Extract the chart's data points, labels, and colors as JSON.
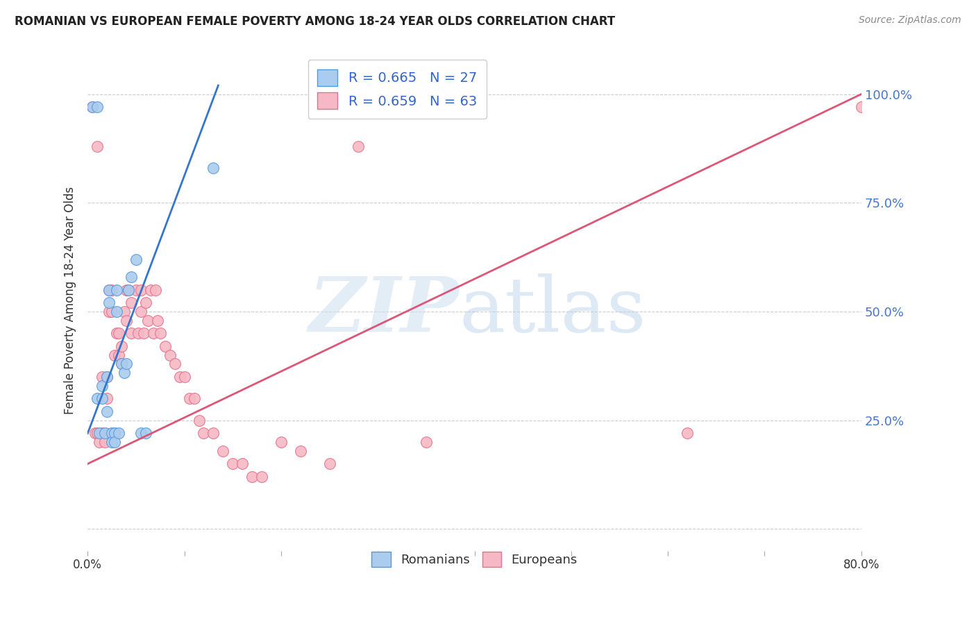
{
  "title": "ROMANIAN VS EUROPEAN FEMALE POVERTY AMONG 18-24 YEAR OLDS CORRELATION CHART",
  "source": "Source: ZipAtlas.com",
  "ylabel": "Female Poverty Among 18-24 Year Olds",
  "yticks": [
    0.0,
    0.25,
    0.5,
    0.75,
    1.0
  ],
  "ytick_labels_right": [
    "",
    "25.0%",
    "50.0%",
    "75.0%",
    "100.0%"
  ],
  "xlim": [
    0.0,
    0.8
  ],
  "ylim": [
    -0.05,
    1.1
  ],
  "legend_r_blue": "R = 0.665",
  "legend_n_blue": "N = 27",
  "legend_r_pink": "R = 0.659",
  "legend_n_pink": "N = 63",
  "blue_fill": "#aaccee",
  "pink_fill": "#f5b8c4",
  "blue_edge": "#5599dd",
  "pink_edge": "#e8708a",
  "blue_line": "#3377cc",
  "pink_line": "#dd5577",
  "romanians_x": [
    0.005,
    0.01,
    0.01,
    0.012,
    0.015,
    0.015,
    0.018,
    0.02,
    0.02,
    0.022,
    0.022,
    0.025,
    0.025,
    0.028,
    0.028,
    0.03,
    0.03,
    0.032,
    0.035,
    0.038,
    0.04,
    0.042,
    0.045,
    0.05,
    0.055,
    0.06,
    0.13
  ],
  "romanians_y": [
    0.97,
    0.97,
    0.3,
    0.22,
    0.33,
    0.3,
    0.22,
    0.35,
    0.27,
    0.55,
    0.52,
    0.22,
    0.2,
    0.22,
    0.2,
    0.55,
    0.5,
    0.22,
    0.38,
    0.36,
    0.38,
    0.55,
    0.58,
    0.62,
    0.22,
    0.22,
    0.83
  ],
  "europeans_x": [
    0.005,
    0.008,
    0.01,
    0.01,
    0.012,
    0.015,
    0.015,
    0.018,
    0.018,
    0.02,
    0.02,
    0.022,
    0.022,
    0.025,
    0.025,
    0.025,
    0.028,
    0.028,
    0.03,
    0.032,
    0.032,
    0.035,
    0.035,
    0.038,
    0.04,
    0.04,
    0.042,
    0.045,
    0.045,
    0.05,
    0.052,
    0.055,
    0.055,
    0.058,
    0.06,
    0.062,
    0.065,
    0.068,
    0.07,
    0.072,
    0.075,
    0.08,
    0.085,
    0.09,
    0.095,
    0.1,
    0.105,
    0.11,
    0.115,
    0.12,
    0.13,
    0.14,
    0.15,
    0.16,
    0.17,
    0.18,
    0.2,
    0.22,
    0.25,
    0.28,
    0.35,
    0.62,
    0.8
  ],
  "europeans_y": [
    0.97,
    0.22,
    0.88,
    0.22,
    0.2,
    0.35,
    0.22,
    0.22,
    0.2,
    0.35,
    0.3,
    0.55,
    0.5,
    0.55,
    0.5,
    0.22,
    0.4,
    0.22,
    0.45,
    0.45,
    0.4,
    0.42,
    0.38,
    0.5,
    0.55,
    0.48,
    0.55,
    0.52,
    0.45,
    0.55,
    0.45,
    0.55,
    0.5,
    0.45,
    0.52,
    0.48,
    0.55,
    0.45,
    0.55,
    0.48,
    0.45,
    0.42,
    0.4,
    0.38,
    0.35,
    0.35,
    0.3,
    0.3,
    0.25,
    0.22,
    0.22,
    0.18,
    0.15,
    0.15,
    0.12,
    0.12,
    0.2,
    0.18,
    0.15,
    0.88,
    0.2,
    0.22,
    0.97
  ]
}
